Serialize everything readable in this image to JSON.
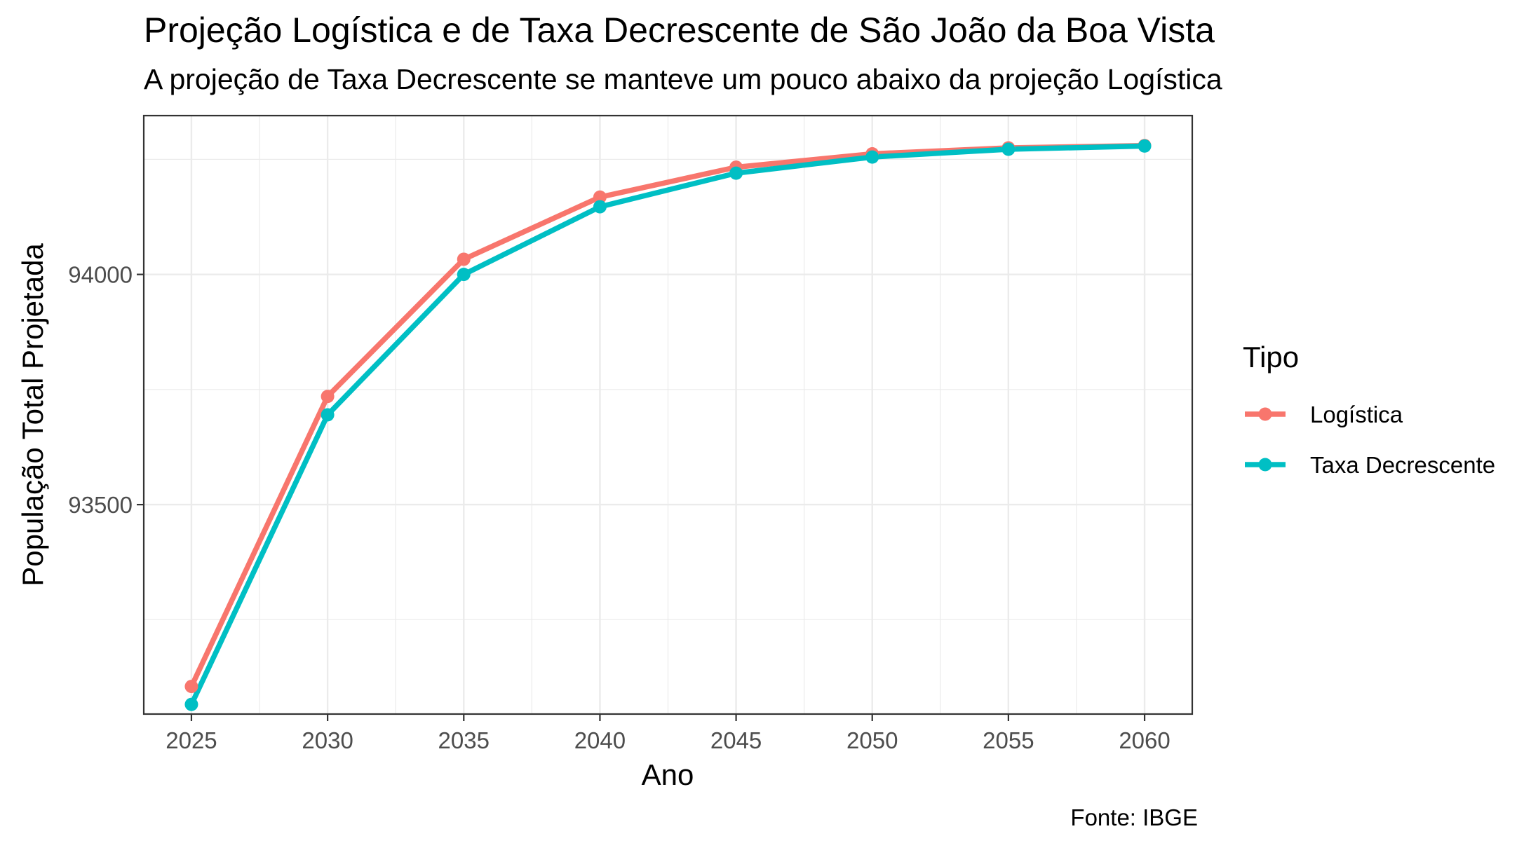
{
  "chart_data": {
    "type": "line",
    "title": "Projeção Logística e de Taxa Decrescente de São João da Boa Vista",
    "subtitle": "A projeção de Taxa Decrescente se manteve um pouco abaixo da projeção Logística",
    "caption": "Fonte: IBGE",
    "xlabel": "Ano",
    "ylabel": "População Total Projetada",
    "x": [
      2025,
      2030,
      2035,
      2040,
      2045,
      2050,
      2055,
      2060
    ],
    "x_ticks": [
      "2025",
      "2030",
      "2035",
      "2040",
      "2045",
      "2050",
      "2055",
      "2060"
    ],
    "y_ticks": [
      "93500",
      "94000"
    ],
    "y_tick_values": [
      93500,
      94000
    ],
    "xlim": [
      2023.25,
      2061.75
    ],
    "ylim": [
      93045,
      94345
    ],
    "grid": true,
    "legend_title": "Tipo",
    "legend_position": "right",
    "series": [
      {
        "name": "Logística",
        "color": "#F8766D",
        "values": [
          93105,
          93735,
          94033,
          94168,
          94233,
          94262,
          94275,
          94280
        ]
      },
      {
        "name": "Taxa Decrescente",
        "color": "#00BFC4",
        "values": [
          93066,
          93695,
          94000,
          94147,
          94220,
          94255,
          94272,
          94279
        ]
      }
    ]
  }
}
